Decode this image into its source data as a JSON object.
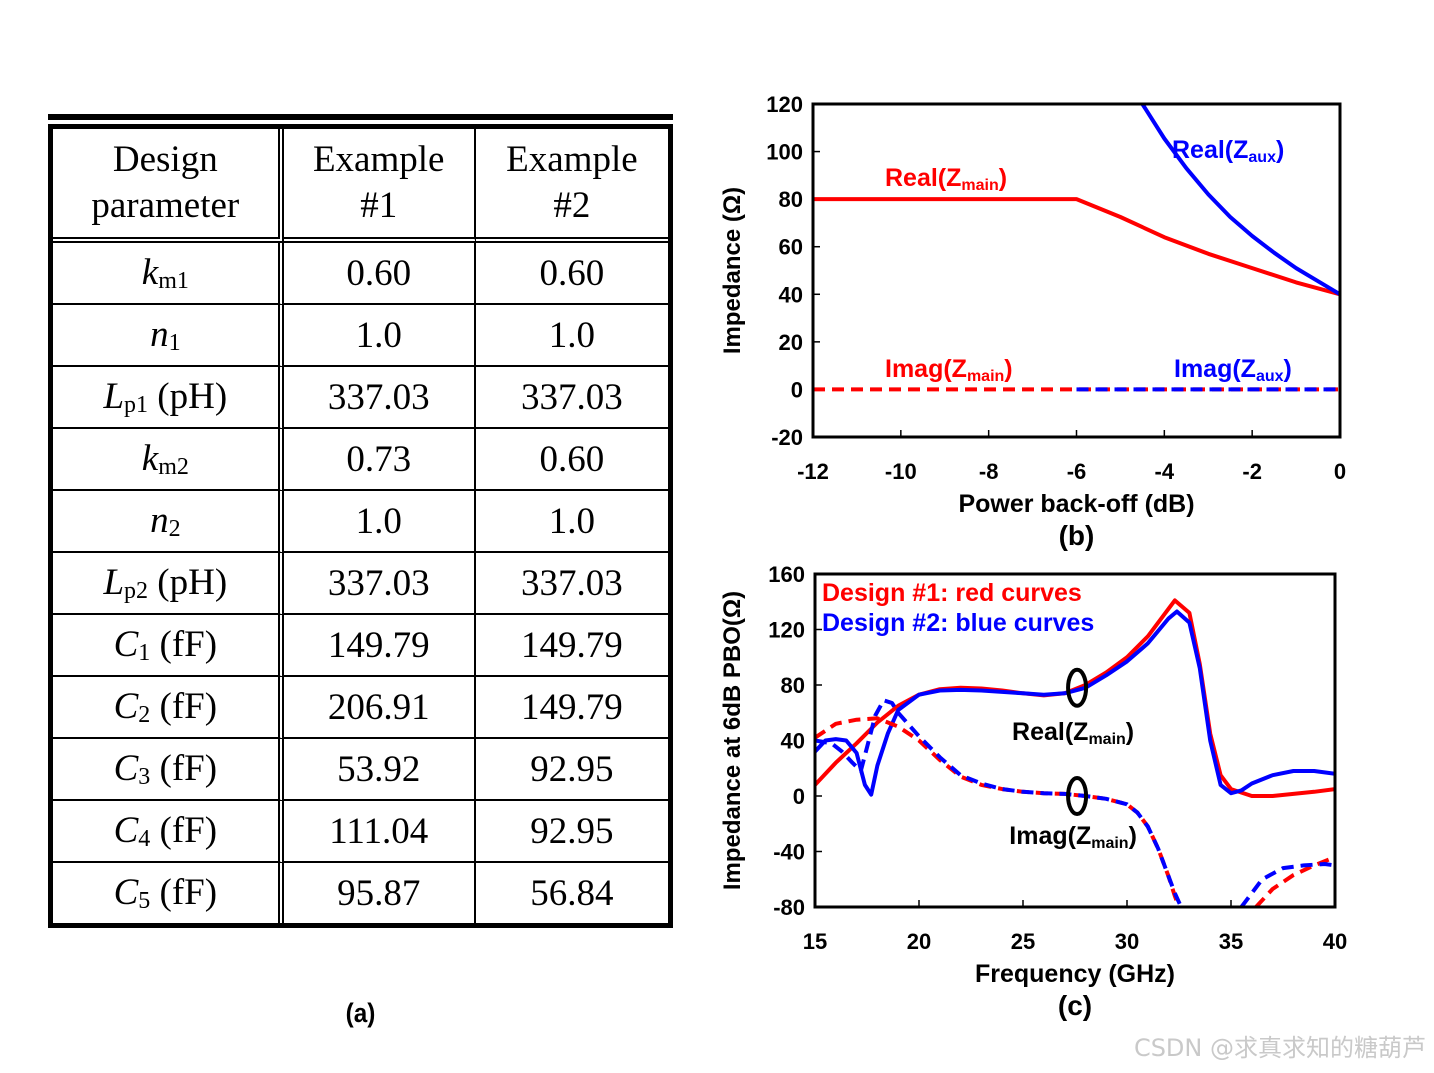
{
  "table": {
    "caption": "(a)",
    "headers": [
      "Design parameter",
      "Example #1",
      "Example #2"
    ],
    "header_lines": [
      [
        "Design",
        "parameter"
      ],
      [
        "Example",
        "#1"
      ],
      [
        "Example",
        "#2"
      ]
    ],
    "rows": [
      {
        "sym": "k",
        "sub": "m1",
        "unit": "",
        "ex1": "0.60",
        "ex2": "0.60"
      },
      {
        "sym": "n",
        "sub": "1",
        "unit": "",
        "ex1": "1.0",
        "ex2": "1.0"
      },
      {
        "sym": "L",
        "sub": "p1",
        "unit": " (pH)",
        "ex1": "337.03",
        "ex2": "337.03"
      },
      {
        "sym": "k",
        "sub": "m2",
        "unit": "",
        "ex1": "0.73",
        "ex2": "0.60"
      },
      {
        "sym": "n",
        "sub": "2",
        "unit": "",
        "ex1": "1.0",
        "ex2": "1.0"
      },
      {
        "sym": "L",
        "sub": "p2",
        "unit": " (pH)",
        "ex1": "337.03",
        "ex2": "337.03"
      },
      {
        "sym": "C",
        "sub": "1",
        "unit": " (fF)",
        "ex1": "149.79",
        "ex2": "149.79"
      },
      {
        "sym": "C",
        "sub": "2",
        "unit": " (fF)",
        "ex1": "206.91",
        "ex2": "149.79"
      },
      {
        "sym": "C",
        "sub": "3",
        "unit": " (fF)",
        "ex1": "53.92",
        "ex2": "92.95"
      },
      {
        "sym": "C",
        "sub": "4",
        "unit": " (fF)",
        "ex1": "111.04",
        "ex2": "92.95"
      },
      {
        "sym": "C",
        "sub": "5",
        "unit": " (fF)",
        "ex1": "95.87",
        "ex2": "56.84"
      }
    ]
  },
  "chart_data": [
    {
      "type": "line",
      "caption": "(b)",
      "xlabel": "Power back-off (dB)",
      "ylabel": "Impedance (Ω)",
      "xlim": [
        -12,
        0
      ],
      "ylim": [
        -20,
        120
      ],
      "xticks": [
        -12,
        -10,
        -8,
        -6,
        -4,
        -2,
        0
      ],
      "yticks": [
        -20,
        0,
        20,
        40,
        60,
        80,
        100,
        120
      ],
      "grid": false,
      "series": [
        {
          "label_base": "Real(Z",
          "label_sub": "main",
          "color": "#ff0000",
          "dash": false,
          "x": [
            -12,
            -6.3,
            -6,
            -5,
            -4,
            -3,
            -2,
            -1,
            0
          ],
          "y": [
            80,
            80,
            80,
            72.5,
            64,
            57,
            51,
            45,
            40
          ]
        },
        {
          "label_base": "Real(Z",
          "label_sub": "aux",
          "color": "#0000ff",
          "dash": false,
          "x": [
            -4.5,
            -4,
            -3.5,
            -3,
            -2.5,
            -2,
            -1.5,
            -1,
            -0.5,
            0
          ],
          "y": [
            120,
            105.5,
            93,
            82,
            72.5,
            64.5,
            57.5,
            51,
            45.5,
            40
          ]
        },
        {
          "label_base": "Imag(Z",
          "label_sub": "main",
          "color": "#ff0000",
          "dash": true,
          "x": [
            -12,
            0
          ],
          "y": [
            0,
            0
          ]
        },
        {
          "label_base": "Imag(Z",
          "label_sub": "aux",
          "color": "#0000ff",
          "dash": true,
          "x": [
            -6,
            0
          ],
          "y": [
            0,
            0
          ]
        }
      ]
    },
    {
      "type": "line",
      "caption": "(c)",
      "xlabel": "Frequency (GHz)",
      "ylabel": "Impedance at 6dB PBO(Ω)",
      "xlim": [
        15,
        40
      ],
      "ylim": [
        -80,
        160
      ],
      "xticks": [
        15,
        20,
        25,
        30,
        35,
        40
      ],
      "yticks": [
        -80,
        -40,
        0,
        40,
        80,
        120,
        160
      ],
      "grid": false,
      "legend": [
        "Design #1: red curves",
        "Design #2: blue curves"
      ],
      "annotations": [
        {
          "base": "Real(Z",
          "sub": "main",
          "x": 27.6,
          "y": 78
        },
        {
          "base": "Imag(Z",
          "sub": "main",
          "x": 27.6,
          "y": 0
        }
      ],
      "series": [
        {
          "name": "Design #1 Real",
          "color": "#ff0000",
          "dash": false,
          "x": [
            15,
            16,
            17,
            18,
            19,
            20,
            21,
            22,
            23,
            24,
            25,
            26,
            27,
            28,
            29,
            30,
            31,
            32,
            32.3,
            33,
            33.5,
            34,
            34.5,
            35,
            36,
            37,
            38,
            39,
            40
          ],
          "y": [
            8,
            24,
            38,
            53,
            65,
            73,
            77,
            78,
            77.5,
            76,
            74,
            72.5,
            74,
            80,
            89,
            100,
            115,
            135,
            141,
            132,
            95,
            45,
            15,
            5,
            0,
            0,
            1.5,
            3,
            5
          ]
        },
        {
          "name": "Design #2 Real",
          "color": "#0000ff",
          "dash": false,
          "x": [
            15,
            15.5,
            16,
            16.5,
            17,
            17.4,
            17.7,
            18,
            18.5,
            19,
            20,
            21,
            22,
            23,
            24,
            25,
            26,
            27,
            28,
            29,
            30,
            31,
            32,
            32.4,
            33,
            33.5,
            34,
            34.5,
            35,
            35.5,
            36,
            37,
            38,
            39,
            40
          ],
          "y": [
            32,
            40,
            41,
            40,
            31,
            8,
            1,
            22,
            45,
            62,
            73,
            76,
            76.5,
            76,
            75,
            74,
            73,
            74,
            78,
            87,
            97,
            110,
            128,
            133,
            125,
            92,
            40,
            8,
            2,
            4,
            9,
            15,
            18,
            18,
            16
          ]
        },
        {
          "name": "Design #1 Imag",
          "color": "#ff0000",
          "dash": true,
          "x": [
            15,
            16,
            17,
            18,
            19,
            20,
            21,
            22,
            23,
            24,
            25,
            26,
            27,
            28,
            29,
            30,
            30.5,
            31,
            31.5,
            32,
            32.3,
            32.5,
            null,
            36.2,
            37,
            38,
            39,
            40
          ],
          "y": [
            42,
            52,
            55,
            56,
            50,
            40,
            26,
            14,
            8,
            5,
            3,
            2,
            1.5,
            0,
            -2,
            -6,
            -12,
            -22,
            -38,
            -58,
            -72,
            -80,
            null,
            -80,
            -67,
            -57,
            -50,
            -44
          ]
        },
        {
          "name": "Design #2 Imag",
          "color": "#0000ff",
          "dash": true,
          "x": [
            15,
            15.8,
            16.3,
            16.8,
            17.2,
            17.5,
            17.9,
            18.3,
            18.7,
            19,
            20,
            21,
            22,
            23,
            24,
            25,
            26,
            27,
            28,
            29,
            30,
            30.5,
            31,
            31.5,
            32,
            32.3,
            32.6,
            null,
            35.5,
            36.5,
            37.5,
            38.5,
            39.5,
            40
          ],
          "y": [
            40,
            38,
            32,
            24,
            18,
            35,
            58,
            69,
            67,
            60,
            43,
            28,
            15,
            9,
            5,
            3,
            2,
            1.5,
            0,
            -2,
            -6,
            -12,
            -22,
            -38,
            -58,
            -70,
            -80,
            null,
            -80,
            -60,
            -52,
            -50,
            -49,
            -50
          ]
        }
      ]
    }
  ],
  "watermark": "CSDN @求真求知的糖葫芦"
}
